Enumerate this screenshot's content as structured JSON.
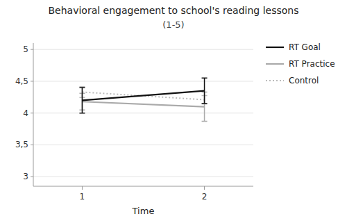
{
  "chart_data": {
    "type": "line",
    "title": "Behavioral engagement to school's reading lessons",
    "subtitle": "(1-5)",
    "xlabel": "Time",
    "x": [
      1,
      2
    ],
    "series": [
      {
        "name": "RT Goal",
        "color": "#111111",
        "values": [
          4.2,
          4.35
        ],
        "errors": [
          0.2,
          0.2
        ],
        "line_style": "solid"
      },
      {
        "name": "RT Practice",
        "color": "#aaaaaa",
        "values": [
          4.18,
          4.1
        ],
        "errors": [
          0.13,
          0.23
        ],
        "line_style": "solid"
      },
      {
        "name": "Control",
        "color": "#bbbbbb",
        "values": [
          4.33,
          4.21
        ],
        "errors": [
          0.085,
          0.065
        ],
        "line_style": "dotted"
      }
    ],
    "ylim": [
      2.85,
      5.1
    ],
    "yticks": [
      3,
      {
        "value": 3.5,
        "label": "3,5"
      },
      4,
      {
        "value": 4.5,
        "label": "4,5"
      },
      5
    ],
    "xlim": [
      0.6,
      2.4
    ],
    "xticks": [
      1,
      2
    ],
    "grid": true,
    "legend": "right"
  }
}
